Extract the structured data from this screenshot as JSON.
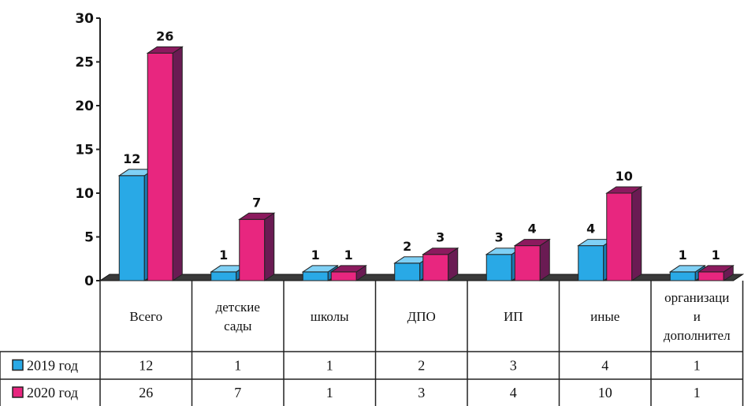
{
  "chart_data": {
    "type": "bar",
    "style": "3d-clustered-bar-with-data-table",
    "categories": [
      [
        "Всего"
      ],
      [
        "детские",
        "сады"
      ],
      [
        "школы"
      ],
      [
        "ДПО"
      ],
      [
        "ИП"
      ],
      [
        "иные"
      ],
      [
        "организаци",
        "и",
        "дополнител"
      ]
    ],
    "series": [
      {
        "name": "2019 год",
        "values": [
          12,
          1,
          1,
          2,
          3,
          4,
          1
        ],
        "color": "#29a9e6",
        "side_color": "#1a7cb3",
        "top_color": "#7fd0f5"
      },
      {
        "name": "2020 год",
        "values": [
          26,
          7,
          1,
          3,
          4,
          10,
          1
        ],
        "color": "#e8267f",
        "side_color": "#6a1b53",
        "top_color": "#8c1a5e"
      }
    ],
    "yticks": [
      0,
      5,
      10,
      15,
      20,
      25,
      30
    ],
    "ylim": [
      0,
      30
    ],
    "legend": "data-table-left",
    "grid": false
  }
}
